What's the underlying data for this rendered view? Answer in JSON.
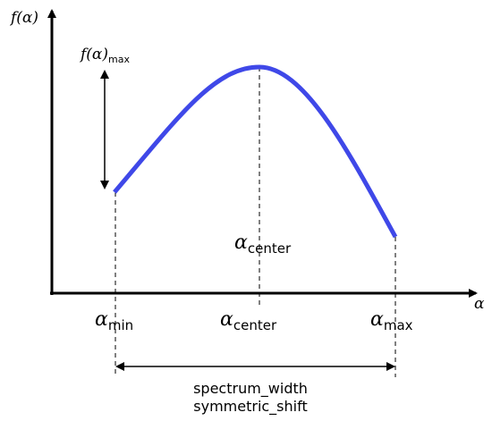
{
  "axes": {
    "y_label": "f(α)",
    "x_label": "α"
  },
  "annotations": {
    "height": {
      "base": "f(α)",
      "sub": "max"
    },
    "center_inner": {
      "base": "α",
      "sub": "center"
    }
  },
  "x_marks": [
    {
      "base": "α",
      "sub": "min"
    },
    {
      "base": "α",
      "sub": "center"
    },
    {
      "base": "α",
      "sub": "max"
    }
  ],
  "width_labels": [
    "spectrum_width",
    "symmetric_shift"
  ]
}
